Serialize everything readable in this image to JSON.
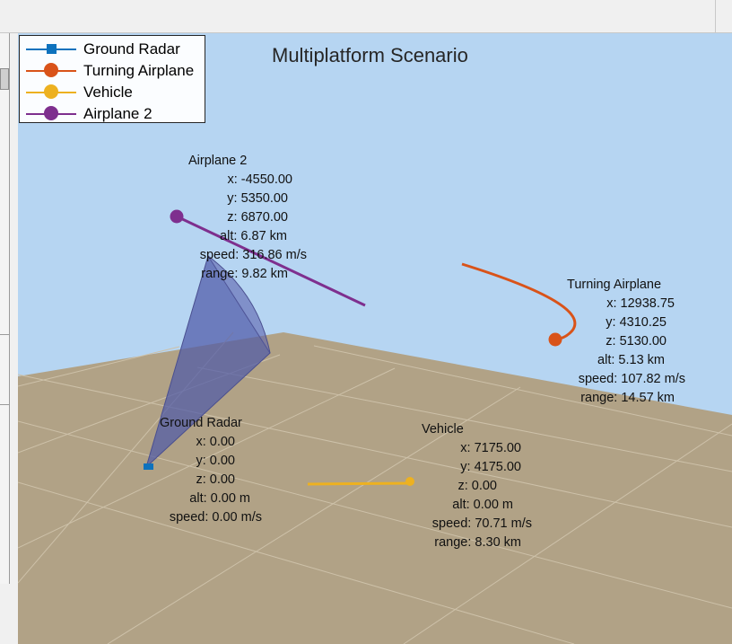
{
  "figure": {
    "title": "Multiplatform Scenario",
    "colors": {
      "sky": "#b6d5f2",
      "ground": "#b1a286",
      "grid": "#cdc1a9",
      "radar": "#0e72bd",
      "turning_airplane": "#d95319",
      "vehicle": "#edb120",
      "airplane2": "#7e2f8e",
      "radar_beam": "#4f5aa8"
    }
  },
  "legend": {
    "items": [
      {
        "label": "Ground Radar",
        "marker": "square"
      },
      {
        "label": "Turning Airplane",
        "marker": "circle"
      },
      {
        "label": "Vehicle",
        "marker": "circle"
      },
      {
        "label": "Airplane 2",
        "marker": "circle"
      }
    ]
  },
  "platforms": {
    "airplane2": {
      "name": "Airplane 2",
      "x": "x: -4550.00",
      "y": "y: 5350.00",
      "z": "z: 6870.00",
      "alt": "alt: 6.87 km",
      "speed": "speed: 316.86 m/s",
      "range": "range: 9.82 km"
    },
    "turning_airplane": {
      "name": "Turning Airplane",
      "x": "x: 12938.75",
      "y": "y: 4310.25",
      "z": "z: 5130.00",
      "alt": "alt: 5.13 km",
      "speed": "speed: 107.82 m/s",
      "range": "range: 14.57 km"
    },
    "ground_radar": {
      "name": "Ground Radar",
      "x": "x: 0.00",
      "y": "y: 0.00",
      "z": "z: 0.00",
      "alt": "alt: 0.00 m",
      "speed": "speed: 0.00 m/s"
    },
    "vehicle": {
      "name": "Vehicle",
      "x": "x: 7175.00",
      "y": "y: 4175.00",
      "z": "z: 0.00",
      "alt": "alt: 0.00 m",
      "speed": "speed: 70.71 m/s",
      "range": "range: 8.30 km"
    }
  }
}
